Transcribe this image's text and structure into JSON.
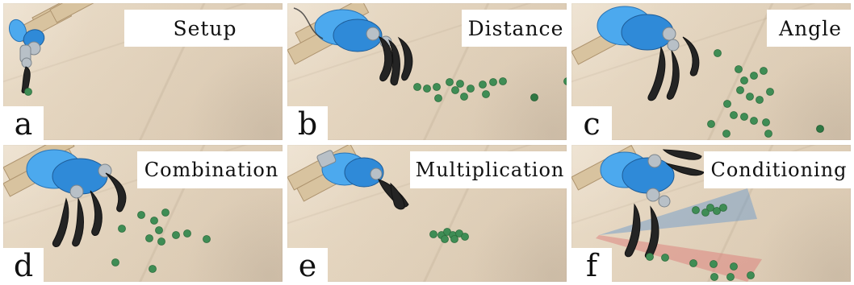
{
  "panels": [
    {
      "title": "Setup",
      "label": "a"
    },
    {
      "title": "Distance",
      "label": "b"
    },
    {
      "title": "Angle",
      "label": "c"
    },
    {
      "title": "Combination",
      "label": "d"
    },
    {
      "title": "Multiplication",
      "label": "e"
    },
    {
      "title": "Conditioning",
      "label": "f"
    }
  ],
  "colors": {
    "object": "#3f8d55",
    "robot": "#2f8ad8",
    "gripper": "#242424",
    "cone_blue": "#5a91cd",
    "cone_red": "#dc6e6e"
  }
}
